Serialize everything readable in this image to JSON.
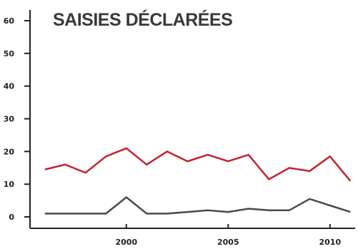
{
  "chart_data": {
    "type": "line",
    "title": "SAISIES DÉCLARÉES",
    "xlabel": "",
    "ylabel": "",
    "x": [
      1996,
      1997,
      1998,
      1999,
      2000,
      2001,
      2002,
      2003,
      2004,
      2005,
      2006,
      2007,
      2008,
      2009,
      2010,
      2011
    ],
    "xlim": [
      1995.2,
      2011.2
    ],
    "ylim": [
      0,
      60
    ],
    "yticks": [
      0,
      10,
      20,
      30,
      40,
      50,
      60
    ],
    "xticks": [
      2000,
      2005,
      2010
    ],
    "grid": false,
    "series": [
      {
        "color": "#c8202f",
        "values": [
          14.5,
          16,
          13.5,
          18.5,
          21,
          16,
          20,
          17,
          19,
          17,
          19,
          11.5,
          15,
          14,
          18.5,
          11
        ]
      },
      {
        "color": "#4a4a4a",
        "values": [
          1,
          1,
          1,
          1,
          6,
          1,
          1,
          1.5,
          2,
          1.5,
          2.5,
          2,
          2,
          5.5,
          3.5,
          1.5
        ]
      }
    ]
  }
}
